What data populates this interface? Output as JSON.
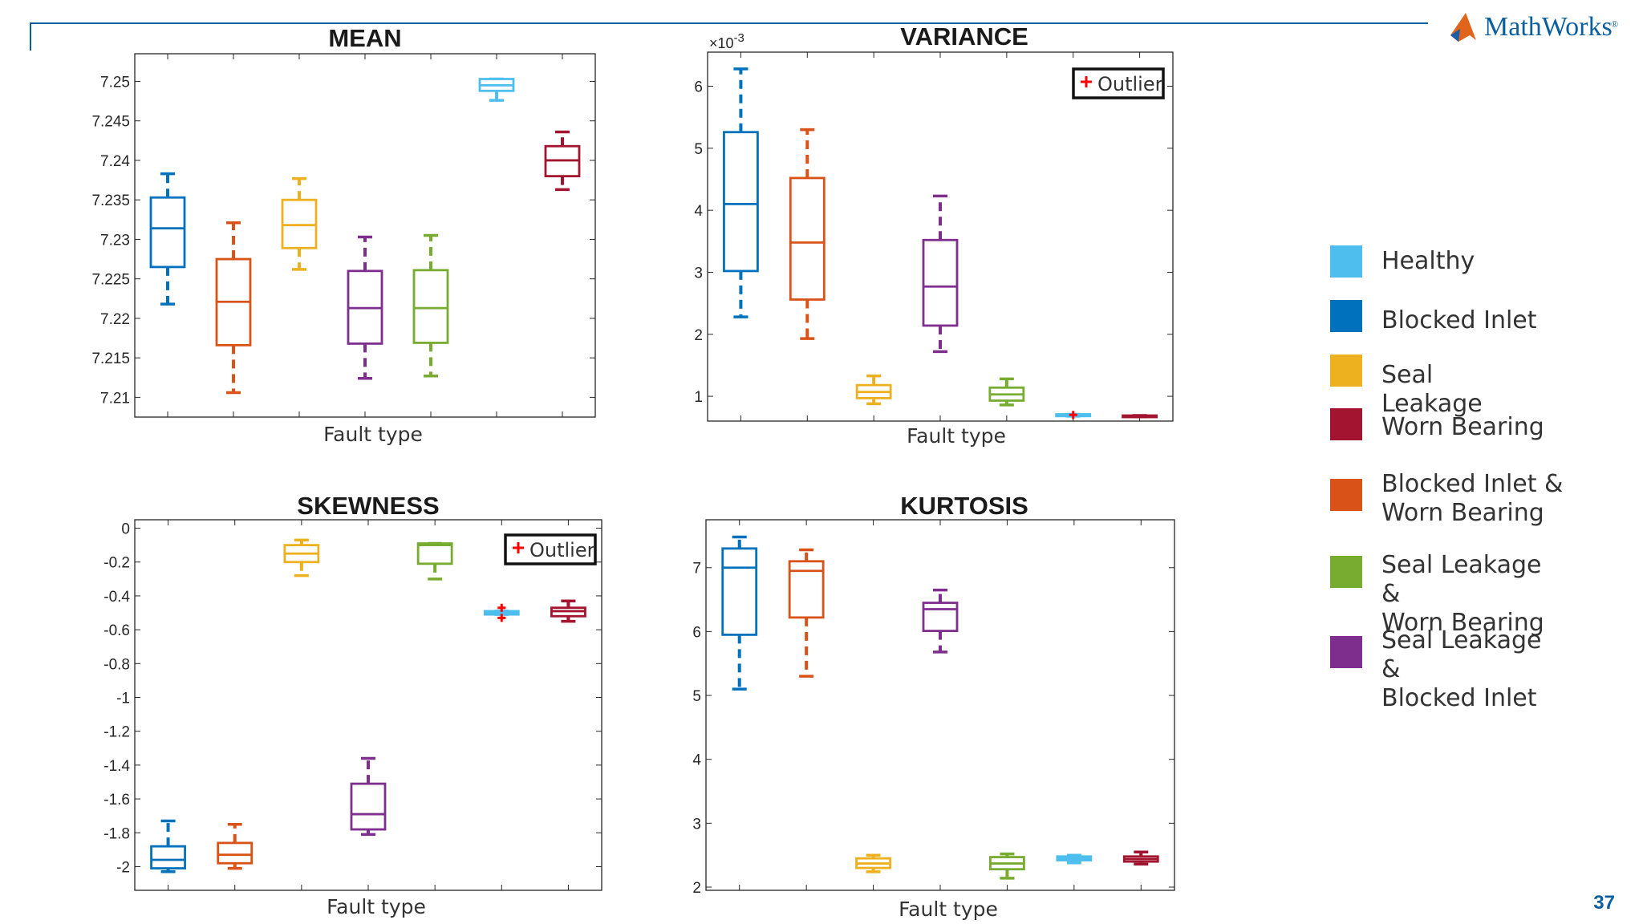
{
  "slide": {
    "number": "37",
    "logo": "MathWorks",
    "logo_mark": "®"
  },
  "colors": {
    "Healthy": "#4dbeee",
    "Blocked Inlet": "#0072bd",
    "Seal Leakage": "#edb120",
    "Worn Bearing": "#a2142f",
    "Blocked Inlet & Worn Bearing": "#d95319",
    "Seal Leakage & Worn Bearing": "#77ac30",
    "Seal Leakage & Blocked Inlet": "#7e2f8e",
    "accent_line": "#0a5f9e",
    "outlier": "#ff0000"
  },
  "legend": {
    "items": [
      {
        "key": "Healthy",
        "lines": [
          "Healthy"
        ]
      },
      {
        "key": "Blocked Inlet",
        "lines": [
          "Blocked Inlet"
        ]
      },
      {
        "key": "Seal Leakage",
        "lines": [
          "Seal",
          "Leakage"
        ]
      },
      {
        "key": "Worn Bearing",
        "lines": [
          "Worn Bearing"
        ]
      },
      {
        "key": "Blocked Inlet & Worn Bearing",
        "lines": [
          "Blocked Inlet &",
          "Worn Bearing"
        ]
      },
      {
        "key": "Seal Leakage & Worn Bearing",
        "lines": [
          "Seal Leakage",
          "&",
          "Worn Bearing"
        ]
      },
      {
        "key": "Seal Leakage & Blocked Inlet",
        "lines": [
          "Seal Leakage",
          "&",
          "Blocked Inlet"
        ]
      }
    ]
  },
  "chart_data": [
    {
      "type": "boxplot",
      "title": "MEAN",
      "xlabel": "Fault type",
      "ylabel": "",
      "ylim": [
        7.2075,
        7.2535
      ],
      "yticks": [
        7.21,
        7.215,
        7.22,
        7.225,
        7.23,
        7.235,
        7.24,
        7.245,
        7.25
      ],
      "ytick_labels": [
        "7.21",
        "7.215",
        "7.22",
        "7.225",
        "7.23",
        "7.235",
        "7.24",
        "7.245",
        "7.25"
      ],
      "exponent_label": "",
      "outlier_legend": "",
      "series": [
        {
          "name": "Blocked Inlet",
          "whislo": 7.2218,
          "q1": 7.2265,
          "med": 7.2314,
          "q3": 7.2353,
          "whishi": 7.2383,
          "fliers": []
        },
        {
          "name": "Blocked Inlet & Worn Bearing",
          "whislo": 7.2106,
          "q1": 7.2166,
          "med": 7.2221,
          "q3": 7.2275,
          "whishi": 7.2321,
          "fliers": []
        },
        {
          "name": "Seal Leakage",
          "whislo": 7.2262,
          "q1": 7.2289,
          "med": 7.2318,
          "q3": 7.235,
          "whishi": 7.2377,
          "fliers": []
        },
        {
          "name": "Seal Leakage & Blocked Inlet",
          "whislo": 7.2124,
          "q1": 7.2168,
          "med": 7.2213,
          "q3": 7.226,
          "whishi": 7.2303,
          "fliers": []
        },
        {
          "name": "Seal Leakage & Worn Bearing",
          "whislo": 7.2127,
          "q1": 7.2169,
          "med": 7.2213,
          "q3": 7.2261,
          "whishi": 7.2305,
          "fliers": []
        },
        {
          "name": "Healthy",
          "whislo": 7.2476,
          "q1": 7.2488,
          "med": 7.2495,
          "q3": 7.2503,
          "whishi": 7.2503,
          "fliers": []
        },
        {
          "name": "Worn Bearing",
          "whislo": 7.2363,
          "q1": 7.238,
          "med": 7.24,
          "q3": 7.2418,
          "whishi": 7.2436,
          "fliers": []
        }
      ]
    },
    {
      "type": "boxplot",
      "title": "VARIANCE",
      "xlabel": "Fault type",
      "ylabel": "",
      "ylim": [
        0.6,
        6.55
      ],
      "yticks": [
        1,
        2,
        3,
        4,
        5,
        6
      ],
      "ytick_labels": [
        "1",
        "2",
        "3",
        "4",
        "5",
        "6"
      ],
      "exponent_label": "×10-3",
      "outlier_legend": "Outlier",
      "series": [
        {
          "name": "Blocked Inlet",
          "whislo": 2.28,
          "q1": 3.02,
          "med": 4.1,
          "q3": 5.26,
          "whishi": 6.28,
          "fliers": []
        },
        {
          "name": "Blocked Inlet & Worn Bearing",
          "whislo": 1.93,
          "q1": 2.56,
          "med": 3.48,
          "q3": 4.52,
          "whishi": 5.3,
          "fliers": []
        },
        {
          "name": "Seal Leakage",
          "whislo": 0.88,
          "q1": 0.97,
          "med": 1.07,
          "q3": 1.18,
          "whishi": 1.33,
          "fliers": []
        },
        {
          "name": "Seal Leakage & Blocked Inlet",
          "whislo": 1.72,
          "q1": 2.14,
          "med": 2.77,
          "q3": 3.52,
          "whishi": 4.23,
          "fliers": []
        },
        {
          "name": "Seal Leakage & Worn Bearing",
          "whislo": 0.86,
          "q1": 0.93,
          "med": 1.03,
          "q3": 1.14,
          "whishi": 1.28,
          "fliers": []
        },
        {
          "name": "Healthy",
          "whislo": 0.68,
          "q1": 0.68,
          "med": 0.7,
          "q3": 0.71,
          "whishi": 0.71,
          "fliers": [
            0.7
          ]
        },
        {
          "name": "Worn Bearing",
          "whislo": 0.67,
          "q1": 0.67,
          "med": 0.68,
          "q3": 0.69,
          "whishi": 0.69,
          "fliers": []
        }
      ]
    },
    {
      "type": "boxplot",
      "title": "SKEWNESS",
      "xlabel": "Fault type",
      "ylabel": "",
      "ylim": [
        -2.14,
        0.05
      ],
      "yticks": [
        -2,
        -1.8,
        -1.6,
        -1.4,
        -1.2,
        -1,
        -0.8,
        -0.6,
        -0.4,
        -0.2,
        0
      ],
      "ytick_labels": [
        "-2",
        "-1.8",
        "-1.6",
        "-1.4",
        "-1.2",
        "-1",
        "-0.8",
        "-0.6",
        "-0.4",
        "-0.2",
        "0"
      ],
      "exponent_label": "",
      "outlier_legend": "Outlier",
      "series": [
        {
          "name": "Blocked Inlet",
          "whislo": -2.03,
          "q1": -2.01,
          "med": -1.96,
          "q3": -1.88,
          "whishi": -1.73,
          "fliers": []
        },
        {
          "name": "Blocked Inlet & Worn Bearing",
          "whislo": -2.01,
          "q1": -1.98,
          "med": -1.93,
          "q3": -1.86,
          "whishi": -1.75,
          "fliers": []
        },
        {
          "name": "Seal Leakage",
          "whislo": -0.28,
          "q1": -0.2,
          "med": -0.15,
          "q3": -0.1,
          "whishi": -0.07,
          "fliers": []
        },
        {
          "name": "Seal Leakage & Blocked Inlet",
          "whislo": -1.81,
          "q1": -1.78,
          "med": -1.69,
          "q3": -1.51,
          "whishi": -1.36,
          "fliers": []
        },
        {
          "name": "Seal Leakage & Worn Bearing",
          "whislo": -0.3,
          "q1": -0.21,
          "med": -0.1,
          "q3": -0.09,
          "whishi": -0.09,
          "fliers": []
        },
        {
          "name": "Healthy",
          "whislo": -0.51,
          "q1": -0.51,
          "med": -0.5,
          "q3": -0.49,
          "whishi": -0.49,
          "fliers": [
            -0.47,
            -0.53
          ]
        },
        {
          "name": "Worn Bearing",
          "whislo": -0.55,
          "q1": -0.52,
          "med": -0.49,
          "q3": -0.47,
          "whishi": -0.43,
          "fliers": []
        }
      ]
    },
    {
      "type": "boxplot",
      "title": "KURTOSIS",
      "xlabel": "Fault type",
      "ylabel": "",
      "ylim": [
        1.95,
        7.75
      ],
      "yticks": [
        2,
        3,
        4,
        5,
        6,
        7
      ],
      "ytick_labels": [
        "2",
        "3",
        "4",
        "5",
        "6",
        "7"
      ],
      "exponent_label": "",
      "outlier_legend": "",
      "series": [
        {
          "name": "Blocked Inlet",
          "whislo": 5.1,
          "q1": 5.95,
          "med": 7.0,
          "q3": 7.3,
          "whishi": 7.48,
          "fliers": []
        },
        {
          "name": "Blocked Inlet & Worn Bearing",
          "whislo": 5.3,
          "q1": 6.22,
          "med": 6.95,
          "q3": 7.1,
          "whishi": 7.28,
          "fliers": []
        },
        {
          "name": "Seal Leakage",
          "whislo": 2.24,
          "q1": 2.3,
          "med": 2.37,
          "q3": 2.45,
          "whishi": 2.5,
          "fliers": []
        },
        {
          "name": "Seal Leakage & Blocked Inlet",
          "whislo": 5.68,
          "q1": 6.01,
          "med": 6.35,
          "q3": 6.45,
          "whishi": 6.65,
          "fliers": []
        },
        {
          "name": "Seal Leakage & Worn Bearing",
          "whislo": 2.14,
          "q1": 2.28,
          "med": 2.37,
          "q3": 2.47,
          "whishi": 2.52,
          "fliers": []
        },
        {
          "name": "Healthy",
          "whislo": 2.38,
          "q1": 2.42,
          "med": 2.45,
          "q3": 2.48,
          "whishi": 2.5,
          "fliers": []
        },
        {
          "name": "Worn Bearing",
          "whislo": 2.36,
          "q1": 2.4,
          "med": 2.44,
          "q3": 2.48,
          "whishi": 2.55,
          "fliers": []
        }
      ]
    }
  ]
}
